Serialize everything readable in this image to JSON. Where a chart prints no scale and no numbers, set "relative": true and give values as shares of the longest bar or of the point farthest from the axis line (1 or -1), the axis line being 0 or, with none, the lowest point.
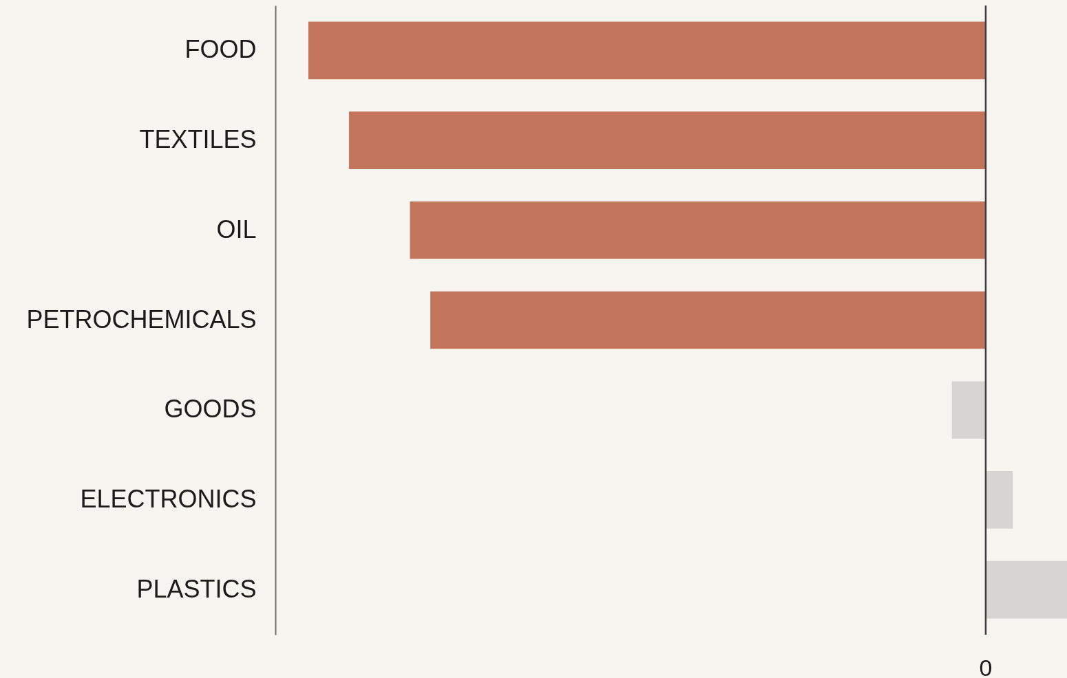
{
  "chart_data": {
    "type": "bar",
    "orientation": "horizontal",
    "relative": true,
    "categories": [
      "FOOD",
      "TEXTILES",
      "OIL",
      "PETROCHEMICALS",
      "GOODS",
      "ELECTRONICS",
      "PLASTICS"
    ],
    "values": [
      -1,
      -0.94,
      -0.85,
      -0.82,
      -0.05,
      0.04,
      0.12
    ],
    "colors": [
      "#c2755a",
      "#c2755a",
      "#c2755a",
      "#c2755a",
      "#d6d5d1",
      "#d6d5d1",
      "#d6d5d1"
    ],
    "annotations": [
      "0"
    ],
    "grid": false
  }
}
